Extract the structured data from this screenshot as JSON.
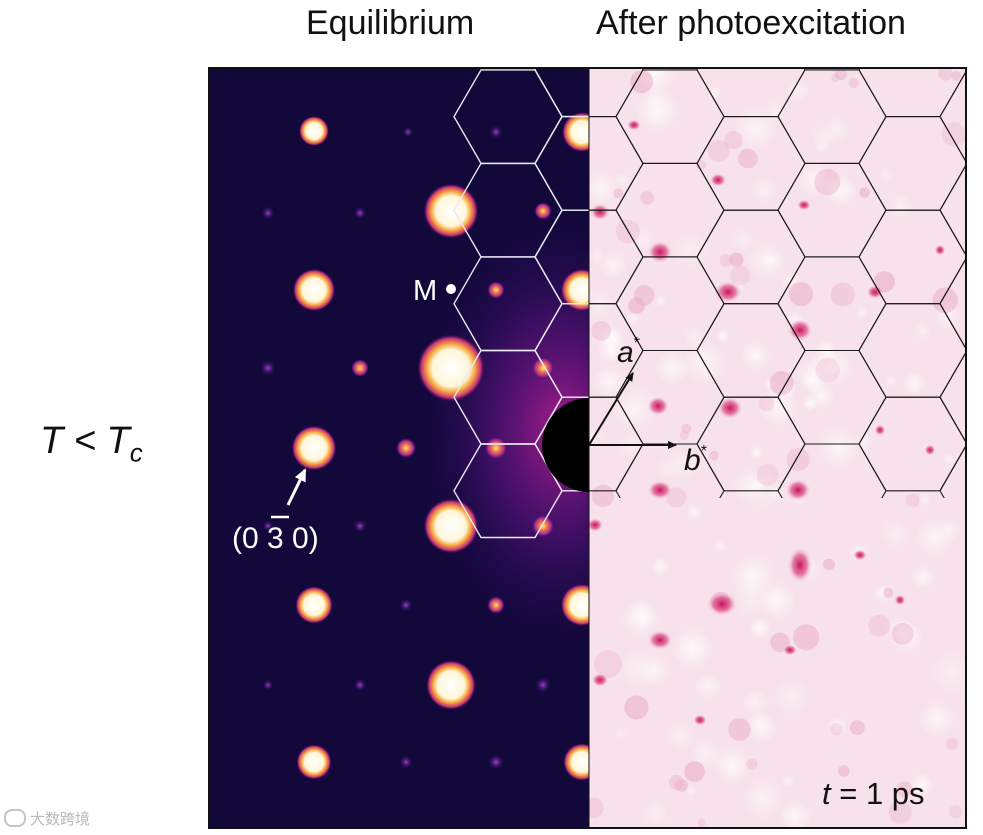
{
  "titles": {
    "left": "Equilibrium",
    "right": "After photoexcitation"
  },
  "row_label": {
    "main": "T < T",
    "subscript": "c"
  },
  "left_panel": {
    "point_label": "M",
    "miller_index": {
      "open": "(0 ",
      "digit": "3",
      "close": " 0)"
    },
    "colors": {
      "background": "#12083a",
      "spot_core": "#ffffff",
      "spot_glow": "#f3a23a",
      "spot_small": "#b53c9c",
      "grid": "#e8e8f0"
    }
  },
  "right_panel": {
    "axis_a": "a",
    "axis_b": "b",
    "superscript": "*",
    "time_prefix": "t",
    "time_value": " = 1 ps",
    "colors": {
      "background": "#f7e1ea",
      "spot": "#d0246e",
      "grid": "#1a1a1a"
    }
  },
  "watermark": "大数跨境"
}
